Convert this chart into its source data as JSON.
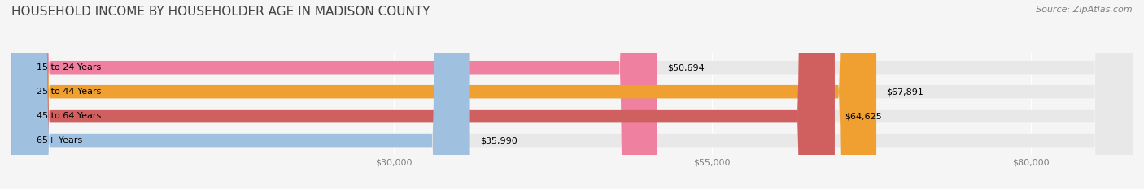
{
  "title": "HOUSEHOLD INCOME BY HOUSEHOLDER AGE IN MADISON COUNTY",
  "source": "Source: ZipAtlas.com",
  "categories": [
    "15 to 24 Years",
    "25 to 44 Years",
    "45 to 64 Years",
    "65+ Years"
  ],
  "values": [
    50694,
    67891,
    64625,
    35990
  ],
  "bar_colors": [
    "#f080a0",
    "#f0a030",
    "#d06060",
    "#a0c0e0"
  ],
  "bar_bg_color": "#e8e8e8",
  "value_labels": [
    "$50,694",
    "$67,891",
    "$64,625",
    "$35,990"
  ],
  "x_ticks": [
    30000,
    55000,
    80000
  ],
  "x_tick_labels": [
    "$30,000",
    "$55,000",
    "$80,000"
  ],
  "x_min": 0,
  "x_max": 88000,
  "background_color": "#f5f5f5",
  "title_fontsize": 11,
  "source_fontsize": 8,
  "label_fontsize": 8,
  "tick_fontsize": 8
}
